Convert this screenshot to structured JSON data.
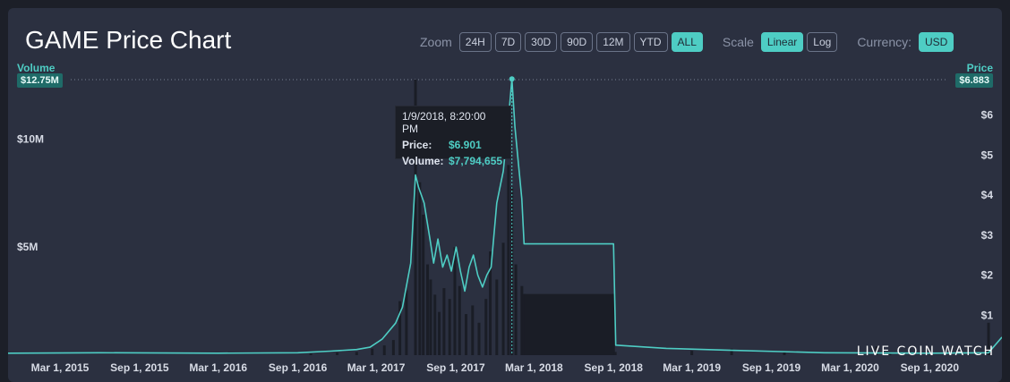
{
  "header": {
    "title": "GAME Price Chart"
  },
  "controls": {
    "zoom_label": "Zoom",
    "zoom_options": [
      "24H",
      "7D",
      "30D",
      "90D",
      "12M",
      "YTD",
      "ALL"
    ],
    "zoom_selected": "ALL",
    "scale_label": "Scale",
    "scale_options": [
      "Linear",
      "Log"
    ],
    "scale_selected": "Linear",
    "currency_label": "Currency:",
    "currency_value": "USD"
  },
  "tooltip": {
    "date": "1/9/2018, 8:20:00 PM",
    "price_label": "Price:",
    "price_value": "$6.901",
    "volume_label": "Volume:",
    "volume_value": "$7,794,655"
  },
  "watermark": "LIVE COIN WATCH",
  "colors": {
    "accent": "#4ecdc4",
    "background": "#2b3040",
    "volume": "#1a1d26"
  },
  "chart_data": {
    "type": "line",
    "x_tick_labels": [
      "Mar 1, 2015",
      "Sep 1, 2015",
      "Mar 1, 2016",
      "Sep 1, 2016",
      "Mar 1, 2017",
      "Sep 1, 2017",
      "Mar 1, 2018",
      "Sep 1, 2018",
      "Mar 1, 2019",
      "Sep 1, 2019",
      "Mar 1, 2020",
      "Sep 1, 2020"
    ],
    "y_left": {
      "title": "Volume",
      "ticks": [
        "$5M",
        "$10M"
      ],
      "tick_values": [
        5000000,
        10000000
      ],
      "max_badge": "$12.75M",
      "range": [
        0,
        12750000
      ]
    },
    "y_right": {
      "title": "Price",
      "ticks": [
        "$1",
        "$2",
        "$3",
        "$4",
        "$5",
        "$6"
      ],
      "tick_values": [
        1,
        2,
        3,
        4,
        5,
        6
      ],
      "max_badge": "$6.883",
      "range": [
        0,
        6.883
      ]
    },
    "x_range": [
      "2014-11-01",
      "2021-02-15"
    ],
    "series": [
      {
        "kind": "price",
        "points": [
          [
            "2014-11-01",
            0.05
          ],
          [
            "2015-06-01",
            0.06
          ],
          [
            "2016-03-01",
            0.05
          ],
          [
            "2016-09-01",
            0.06
          ],
          [
            "2016-11-15",
            0.1
          ],
          [
            "2017-01-15",
            0.14
          ],
          [
            "2017-02-15",
            0.2
          ],
          [
            "2017-03-15",
            0.4
          ],
          [
            "2017-04-15",
            0.8
          ],
          [
            "2017-05-01",
            1.2
          ],
          [
            "2017-05-20",
            2.3
          ],
          [
            "2017-05-31",
            4.5
          ],
          [
            "2017-06-07",
            4.2
          ],
          [
            "2017-06-20",
            3.8
          ],
          [
            "2017-07-05",
            2.8
          ],
          [
            "2017-07-12",
            2.3
          ],
          [
            "2017-07-22",
            2.9
          ],
          [
            "2017-08-02",
            2.2
          ],
          [
            "2017-08-12",
            2.5
          ],
          [
            "2017-08-22",
            2.1
          ],
          [
            "2017-09-02",
            2.7
          ],
          [
            "2017-09-12",
            2.1
          ],
          [
            "2017-09-22",
            1.6
          ],
          [
            "2017-10-02",
            2.2
          ],
          [
            "2017-10-12",
            2.5
          ],
          [
            "2017-10-22",
            2.0
          ],
          [
            "2017-11-02",
            1.7
          ],
          [
            "2017-11-12",
            2.0
          ],
          [
            "2017-11-22",
            2.2
          ],
          [
            "2017-12-05",
            3.8
          ],
          [
            "2017-12-20",
            4.6
          ],
          [
            "2018-01-01",
            5.9
          ],
          [
            "2018-01-09",
            6.9
          ],
          [
            "2018-01-16",
            5.7
          ],
          [
            "2018-01-23",
            4.9
          ],
          [
            "2018-02-01",
            3.9
          ],
          [
            "2018-02-06",
            2.78
          ],
          [
            "2018-09-01",
            2.78
          ],
          [
            "2018-09-06",
            0.25
          ],
          [
            "2019-01-01",
            0.17
          ],
          [
            "2019-06-01",
            0.12
          ],
          [
            "2020-01-01",
            0.06
          ],
          [
            "2020-09-01",
            0.05
          ],
          [
            "2021-01-15",
            0.06
          ],
          [
            "2021-02-15",
            0.45
          ]
        ]
      },
      {
        "kind": "volume",
        "points": [
          [
            "2016-10-01",
            80000
          ],
          [
            "2016-12-01",
            120000
          ],
          [
            "2017-01-15",
            150000
          ],
          [
            "2017-02-20",
            300000
          ],
          [
            "2017-03-20",
            450000
          ],
          [
            "2017-04-10",
            700000
          ],
          [
            "2017-04-25",
            2500000
          ],
          [
            "2017-05-10",
            3000000
          ],
          [
            "2017-05-31",
            12750000
          ],
          [
            "2017-06-10",
            8000000
          ],
          [
            "2017-06-18",
            6500000
          ],
          [
            "2017-06-28",
            4200000
          ],
          [
            "2017-07-05",
            3500000
          ],
          [
            "2017-07-15",
            2800000
          ],
          [
            "2017-07-25",
            2000000
          ],
          [
            "2017-08-05",
            3100000
          ],
          [
            "2017-08-18",
            2600000
          ],
          [
            "2017-08-30",
            5000000
          ],
          [
            "2017-09-10",
            3200000
          ],
          [
            "2017-09-25",
            1900000
          ],
          [
            "2017-10-10",
            2300000
          ],
          [
            "2017-10-25",
            1500000
          ],
          [
            "2017-11-10",
            2600000
          ],
          [
            "2017-11-20",
            4800000
          ],
          [
            "2017-12-05",
            3500000
          ],
          [
            "2017-12-20",
            5200000
          ],
          [
            "2018-01-01",
            8800000
          ],
          [
            "2018-01-09",
            7794655
          ],
          [
            "2018-01-18",
            4200000
          ],
          [
            "2018-02-01",
            3200000
          ],
          [
            "2018-02-06",
            2830000
          ],
          [
            "2018-09-01",
            2830000
          ],
          [
            "2018-09-05",
            150000
          ],
          [
            "2019-03-01",
            200000
          ],
          [
            "2019-06-01",
            300000
          ],
          [
            "2019-10-01",
            120000
          ],
          [
            "2020-05-01",
            400000
          ],
          [
            "2020-06-01",
            100000
          ],
          [
            "2021-01-15",
            1500000
          ]
        ]
      }
    ]
  }
}
